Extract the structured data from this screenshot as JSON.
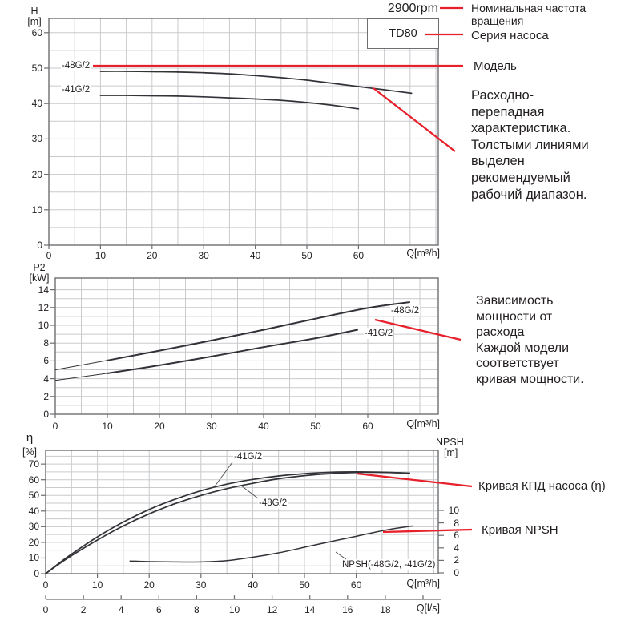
{
  "colors": {
    "accent_red": "#e8202c",
    "curve": "#323338",
    "grid": "#c9cacc",
    "frame": "#6d6e71",
    "text": "#231f20"
  },
  "header": {
    "rpm": "2900rpm",
    "series_box": "TD80"
  },
  "annotations": {
    "nominal_frequency": {
      "lines": [
        "Номинальная частота",
        "вращения"
      ]
    },
    "series": {
      "text": "Серия насоса"
    },
    "model": {
      "text": "Модель"
    },
    "flow_head": {
      "lines": [
        "Расходно-",
        "перепадная",
        "характеристика.",
        "Толстыми линиями",
        "выделен",
        "рекомендуемый",
        "рабочий диапазон."
      ]
    },
    "power": {
      "lines": [
        "Зависимость",
        "мощности от",
        "расхода",
        "Каждой модели",
        "соответствует",
        "кривая мощности."
      ]
    },
    "efficiency": {
      "text": "Кривая КПД насоса (η)"
    },
    "npsh": {
      "text": "Кривая NPSH"
    }
  },
  "chart_data": [
    {
      "type": "line",
      "title": "Head vs flow (H-Q)",
      "x_axis": {
        "label": "Q[m³/h]",
        "ticks": [
          0,
          10,
          20,
          30,
          40,
          50,
          60
        ],
        "max": 75.6,
        "minor_step": 5
      },
      "y_axis": {
        "label": "H",
        "unit": "[m]",
        "ticks": [
          0,
          10,
          20,
          30,
          40,
          50,
          60
        ],
        "max": 64,
        "minor_step": 5
      },
      "grid": true,
      "series": [
        {
          "name": "-48G/2",
          "points": [
            [
              10,
              49.1
            ],
            [
              15,
              49.1
            ],
            [
              20,
              49.0
            ],
            [
              25,
              48.9
            ],
            [
              30,
              48.7
            ],
            [
              35,
              48.4
            ],
            [
              40,
              47.9
            ],
            [
              45,
              47.3
            ],
            [
              50,
              46.6
            ],
            [
              55,
              45.7
            ],
            [
              60,
              44.8
            ],
            [
              65,
              43.9
            ],
            [
              70.3,
              42.9
            ]
          ]
        },
        {
          "name": "-41G/2",
          "points": [
            [
              10,
              42.3
            ],
            [
              15,
              42.3
            ],
            [
              20,
              42.2
            ],
            [
              25,
              42.1
            ],
            [
              30,
              41.9
            ],
            [
              35,
              41.6
            ],
            [
              40,
              41.3
            ],
            [
              45,
              40.9
            ],
            [
              50,
              40.3
            ],
            [
              55,
              39.5
            ],
            [
              60,
              38.5
            ]
          ]
        }
      ]
    },
    {
      "type": "line",
      "title": "Shaft power vs flow (P2-Q)",
      "x_axis": {
        "label": "Q[m³/h]",
        "ticks": [
          0,
          10,
          20,
          30,
          40,
          50,
          60
        ],
        "max": 73.5,
        "minor_step": 5
      },
      "y_axis": {
        "label": "P2",
        "unit": "[kW]",
        "ticks": [
          0,
          2,
          4,
          6,
          8,
          10,
          12,
          14
        ],
        "max": 15.3,
        "minor_step": 1
      },
      "grid": true,
      "series": [
        {
          "name": "-48G/2",
          "thin_until": 10,
          "points": [
            [
              0,
              5.0
            ],
            [
              10,
              6.05
            ],
            [
              20,
              7.15
            ],
            [
              30,
              8.3
            ],
            [
              40,
              9.5
            ],
            [
              50,
              10.75
            ],
            [
              60,
              11.95
            ],
            [
              68,
              12.6
            ]
          ]
        },
        {
          "name": "-41G/2",
          "thin_until": 10,
          "points": [
            [
              0,
              3.8
            ],
            [
              10,
              4.6
            ],
            [
              20,
              5.5
            ],
            [
              30,
              6.5
            ],
            [
              40,
              7.55
            ],
            [
              50,
              8.55
            ],
            [
              58,
              9.5
            ]
          ]
        }
      ]
    },
    {
      "type": "line",
      "title": "Efficiency and NPSH vs flow",
      "x_axis": {
        "label": "Q[m³/h]",
        "ticks": [
          0,
          10,
          20,
          30,
          40,
          50,
          60
        ],
        "max": 75.9,
        "minor_step": 5
      },
      "x2_axis": {
        "label": "Q[l/s]",
        "ticks": [
          0,
          2,
          4,
          6,
          8,
          10,
          12,
          14,
          16,
          18
        ],
        "max": 20
      },
      "y_axis": {
        "label": "η",
        "unit": "[%]",
        "ticks": [
          0,
          10,
          20,
          30,
          40,
          50,
          60,
          70
        ],
        "max": 78.8,
        "minor_step": 5
      },
      "right_axis": {
        "label": "NPSH",
        "unit": "[m]",
        "ticks": [
          0,
          2,
          4,
          6,
          8,
          10
        ]
      },
      "grid": true,
      "series": [
        {
          "name": "-41G/2",
          "points": [
            [
              0,
              0
            ],
            [
              2.5,
              6.5
            ],
            [
              5,
              12.5
            ],
            [
              10,
              23.5
            ],
            [
              15,
              33
            ],
            [
              20,
              41
            ],
            [
              25,
              47.5
            ],
            [
              30,
              53
            ],
            [
              35,
              57.2
            ],
            [
              40,
              60.2
            ],
            [
              45,
              62.4
            ],
            [
              50,
              63.9
            ],
            [
              55,
              64.8
            ],
            [
              60,
              65
            ],
            [
              65,
              64.8
            ],
            [
              70.3,
              64.2
            ]
          ]
        },
        {
          "name": "-48G/2",
          "points": [
            [
              0,
              0
            ],
            [
              2.5,
              6
            ],
            [
              5,
              11.5
            ],
            [
              10,
              21.5
            ],
            [
              15,
              30.5
            ],
            [
              20,
              38.2
            ],
            [
              25,
              44.7
            ],
            [
              30,
              50
            ],
            [
              35,
              54.3
            ],
            [
              40,
              57.7
            ],
            [
              45,
              60.6
            ],
            [
              50,
              62.6
            ],
            [
              55,
              63.9
            ],
            [
              60,
              64.6
            ],
            [
              65,
              64.7
            ],
            [
              70.3,
              64.2
            ]
          ]
        }
      ],
      "npsh_series": {
        "name": "NPSH(-48G/2, -41G/2)",
        "points": [
          [
            16.3,
            1.9
          ],
          [
            20,
            1.8
          ],
          [
            25,
            1.75
          ],
          [
            30,
            1.75
          ],
          [
            35,
            1.95
          ],
          [
            40,
            2.5
          ],
          [
            45,
            3.2
          ],
          [
            50,
            4.1
          ],
          [
            55,
            5.0
          ],
          [
            60,
            5.85
          ],
          [
            63,
            6.4
          ],
          [
            66,
            6.9
          ],
          [
            69,
            7.3
          ],
          [
            70.8,
            7.5
          ]
        ]
      }
    }
  ]
}
